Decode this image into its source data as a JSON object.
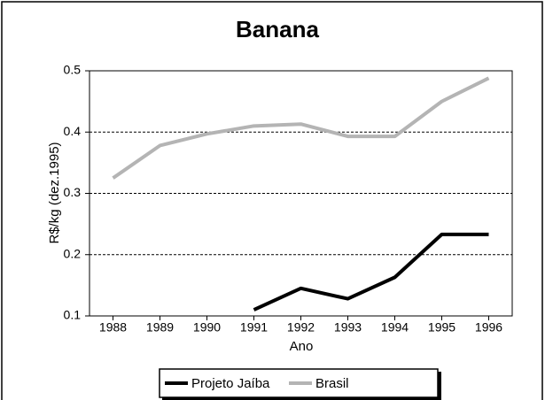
{
  "chart_data": {
    "type": "line",
    "title": "Banana",
    "y_label": "R$/kg (dez.1995)",
    "x_label": "Ano",
    "categories": [
      "1988",
      "1989",
      "1990",
      "1991",
      "1992",
      "1993",
      "1994",
      "1995",
      "1996"
    ],
    "series": [
      {
        "name": "Projeto Jaíba",
        "color": "#000000",
        "values": [
          null,
          null,
          null,
          0.11,
          0.145,
          0.128,
          0.163,
          0.233,
          0.233
        ]
      },
      {
        "name": "Brasil",
        "color": "#b4b4b4",
        "values": [
          0.325,
          0.378,
          0.397,
          0.41,
          0.413,
          0.393,
          0.393,
          0.45,
          0.488
        ]
      }
    ],
    "ylim": [
      0.1,
      0.5
    ],
    "yticks": [
      0.1,
      0.2,
      0.3,
      0.4,
      0.5
    ],
    "grid": true
  }
}
